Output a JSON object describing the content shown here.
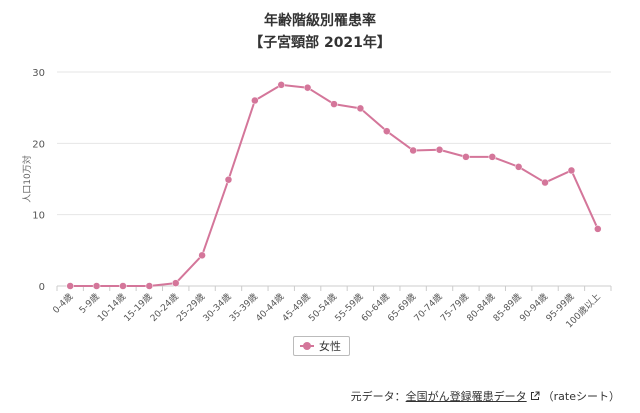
{
  "chart_data": {
    "type": "line",
    "title": "年齢階級別罹患率",
    "subtitle": "【子宮頸部 2021年】",
    "ylabel": "人口10万対",
    "xlabel": "",
    "ylim": [
      0,
      30
    ],
    "yticks": [
      0,
      10,
      20,
      30
    ],
    "grid": true,
    "legend_position": "bottom-center",
    "categories": [
      "0-4歳",
      "5-9歳",
      "10-14歳",
      "15-19歳",
      "20-24歳",
      "25-29歳",
      "30-34歳",
      "35-39歳",
      "40-44歳",
      "45-49歳",
      "50-54歳",
      "55-59歳",
      "60-64歳",
      "65-69歳",
      "70-74歳",
      "75-79歳",
      "80-84歳",
      "85-89歳",
      "90-94歳",
      "95-99歳",
      "100歳以上"
    ],
    "series": [
      {
        "name": "女性",
        "color": "#d4769a",
        "values": [
          0,
          0,
          0,
          0,
          0.4,
          4.3,
          14.9,
          26.0,
          28.2,
          27.8,
          25.5,
          24.9,
          21.7,
          19.0,
          19.1,
          18.1,
          18.1,
          16.7,
          14.5,
          16.2,
          8.0
        ]
      }
    ]
  },
  "footer": {
    "prefix": "元データ：",
    "link_text": "全国がん登録罹患データ",
    "suffix": "（rateシート）"
  }
}
